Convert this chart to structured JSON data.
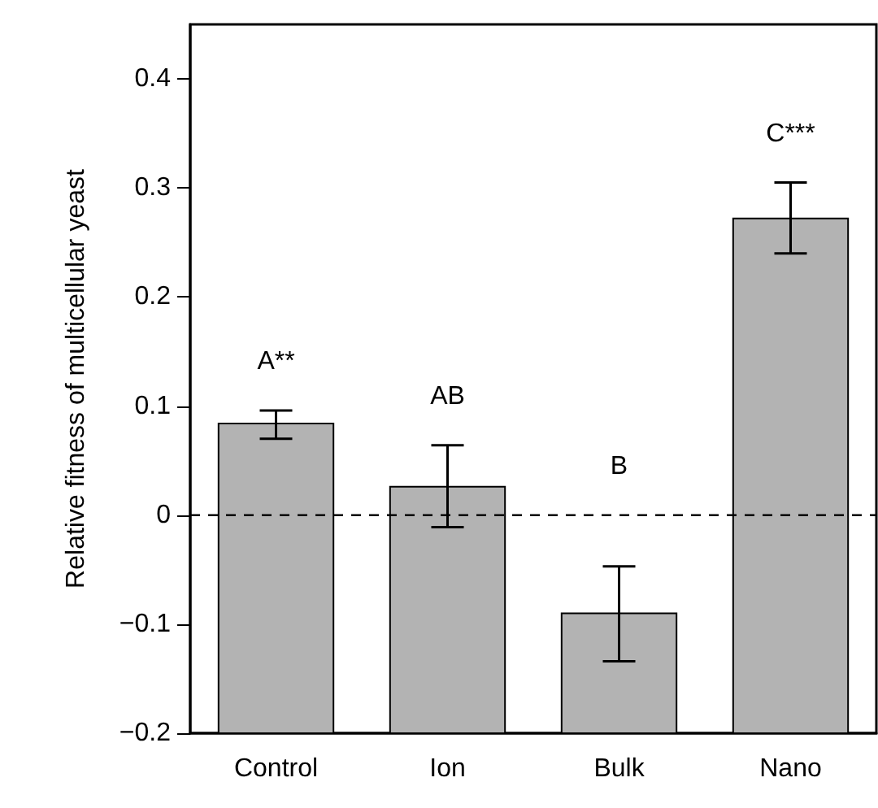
{
  "chart_data": {
    "type": "bar",
    "ylabel": "Relative fitness of multicellular yeast",
    "categories": [
      "Control",
      "Ion",
      "Bulk",
      "Nano"
    ],
    "base": [
      -0.2,
      -0.2,
      -0.2,
      -0.2
    ],
    "values": [
      0.284,
      0.226,
      0.11,
      0.472
    ],
    "errors": [
      [
        0.07,
        0.096
      ],
      [
        -0.011,
        0.064
      ],
      [
        -0.134,
        -0.047
      ],
      [
        0.24,
        0.305
      ]
    ],
    "color": "#b3b3b3",
    "ylim": [
      -0.2,
      0.45
    ],
    "yticks": [
      {
        "value": -0.2,
        "label": "−0.2"
      },
      {
        "value": -0.1,
        "label": "−0.1"
      },
      0,
      0.1,
      0.2,
      0.3,
      0.4
    ],
    "ref_lines": [
      {
        "axis": "y",
        "value": 0,
        "line_style": "dashed",
        "color": "#000000"
      }
    ],
    "annotations": [
      "A**",
      "AB",
      "B",
      "C***"
    ],
    "grid": false,
    "legend": false
  }
}
